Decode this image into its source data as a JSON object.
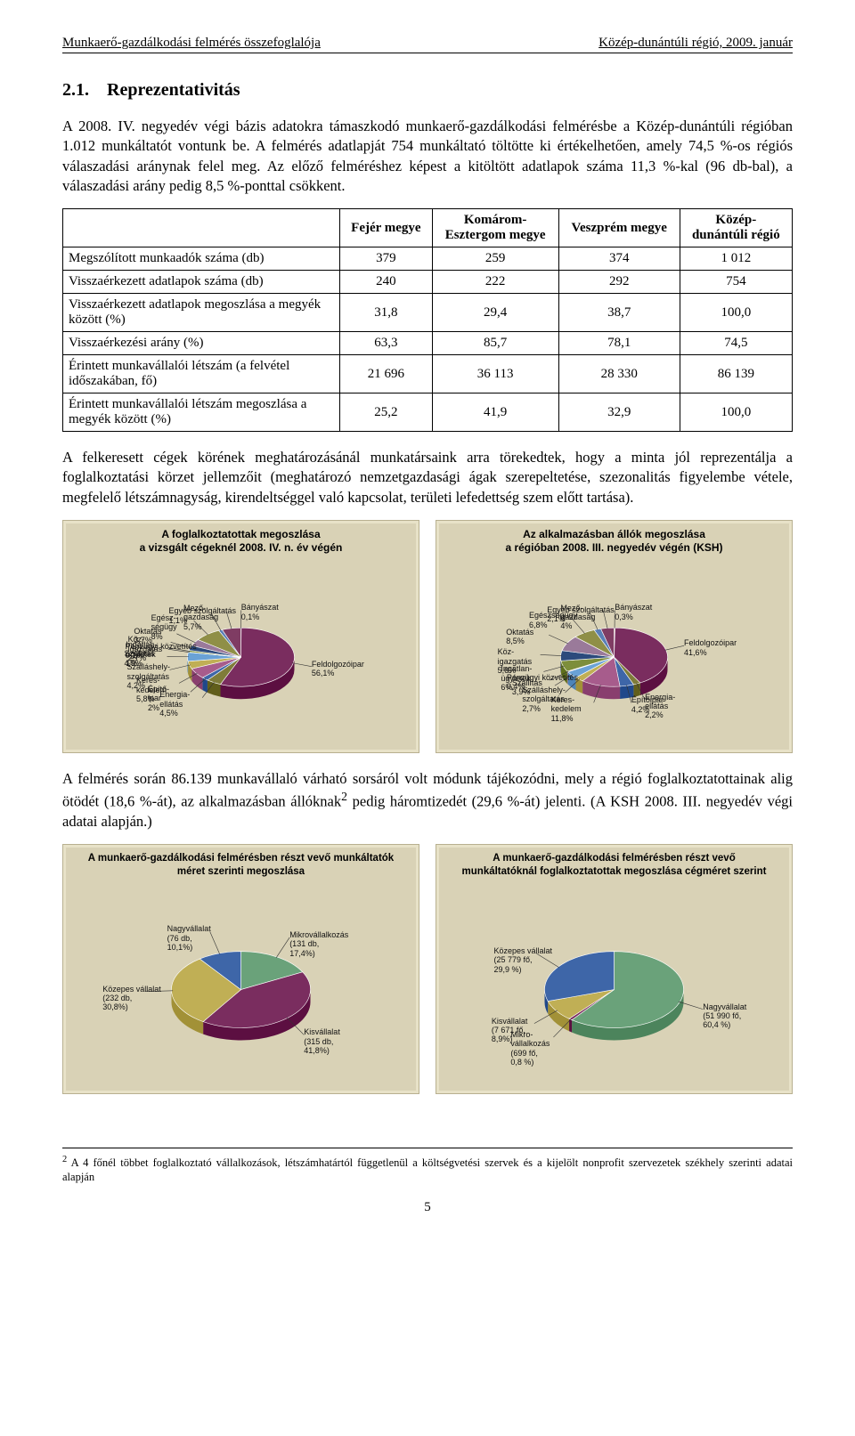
{
  "header": {
    "left": "Munkaerő-gazdálkodási felmérés összefoglalója",
    "right": "Közép-dunántúli régió, 2009. január"
  },
  "section_number": "2.1.",
  "section_title": "Reprezentativitás",
  "para1": "A 2008. IV. negyedév végi bázis adatokra támaszkodó munkaerő-gazdálkodási felmérésbe a Közép-dunántúli régióban 1.012 munkáltatót vontunk be. A felmérés adatlapját 754 munkáltató töltötte ki értékelhetően, amely 74,5 %-os régiós válaszadási aránynak felel meg. Az előző felméréshez képest a kitöltött adatlapok száma 11,3 %-kal (96 db-bal), a válaszadási arány pedig 8,5 %-ponttal csökkent.",
  "table1": {
    "columns": [
      "",
      "Fejér megye",
      "Komárom-Esztergom megye",
      "Veszprém megye",
      "Közép-dunántúli régió"
    ],
    "rows": [
      [
        "Megszólított munkaadók száma (db)",
        "379",
        "259",
        "374",
        "1 012"
      ],
      [
        "Visszaérkezett adatlapok száma (db)",
        "240",
        "222",
        "292",
        "754"
      ],
      [
        "Visszaérkezett adatlapok megoszlása a megyék között (%)",
        "31,8",
        "29,4",
        "38,7",
        "100,0"
      ],
      [
        "Visszaérkezési arány (%)",
        "63,3",
        "85,7",
        "78,1",
        "74,5"
      ],
      [
        "Érintett munkavállalói létszám (a felvétel időszakában, fő)",
        "21 696",
        "36 113",
        "28 330",
        "86 139"
      ],
      [
        "Érintett munkavállalói létszám megoszlása a megyék között (%)",
        "25,2",
        "41,9",
        "32,9",
        "100,0"
      ]
    ]
  },
  "para2": "A felkeresett cégek körének meghatározásánál munkatársaink arra törekedtek, hogy a minta jól reprezentálja a foglalkoztatási körzet jellemzőit (meghatározó nemzetgazdasági ágak szerepeltetése, szezonalitás figyelembe vétele, megfelelő létszámnagyság, kirendeltséggel való kapcsolat, területi lefedettség szem előtt tartása).",
  "charts_top": {
    "panel_bg": "#d9d2b6",
    "panel_border": "#b8b090",
    "left": {
      "title": "A foglalkoztatottak megoszlása\na vizsgált cégeknél 2008. IV. n. év végén",
      "type": "pie",
      "slices": [
        {
          "label": "Bányászat",
          "value": 0.1,
          "color": "#c4956b"
        },
        {
          "label": "Feldolgozóipar",
          "value": 56.1,
          "color": "#7a2d5f"
        },
        {
          "label": "Energia-ellátás",
          "value": 4.5,
          "color": "#7f7c39"
        },
        {
          "label": "Építő-ipar",
          "value": 2.0,
          "color": "#3e66a8"
        },
        {
          "label": "Keres-kedelem",
          "value": 5.8,
          "color": "#a75c8c"
        },
        {
          "label": "Szálláshely-szolgáltatás",
          "value": 4.2,
          "color": "#c0af55"
        },
        {
          "label": "Szállítás",
          "value": 4.9,
          "color": "#6aa2d6"
        },
        {
          "label": "Pénzügyi közvetítés",
          "value": 0.1,
          "color": "#c48f9f"
        },
        {
          "label": "Ingatlan-ügyletek",
          "value": 1.0,
          "color": "#7d8e3b"
        },
        {
          "label": "Köz-igazgatás",
          "value": 2.7,
          "color": "#2c4a7c"
        },
        {
          "label": "Oktatás",
          "value": 3.7,
          "color": "#9a7a9a"
        },
        {
          "label": "Egész-ségügy",
          "value": 8.0,
          "color": "#8f8f47"
        },
        {
          "label": "Egyéb szolgáltatás",
          "value": 1.1,
          "color": "#5a7fb7"
        },
        {
          "label": "Mező-gazdaság",
          "value": 5.7,
          "color": "#7f3c63"
        }
      ]
    },
    "right": {
      "title": "Az alkalmazásban állók megoszlása\na régióban 2008. III. negyedév végén (KSH)",
      "type": "pie",
      "slices": [
        {
          "label": "Bányászat",
          "value": 0.3,
          "color": "#c4956b"
        },
        {
          "label": "Feldolgozóipar",
          "value": 41.6,
          "color": "#7a2d5f"
        },
        {
          "label": "Energia-ellátás",
          "value": 2.2,
          "color": "#7f7c39"
        },
        {
          "label": "Építőipar",
          "value": 4.2,
          "color": "#3e66a8"
        },
        {
          "label": "Keres-kedelem",
          "value": 11.8,
          "color": "#a75c8c"
        },
        {
          "label": "Szálláshely-szolgáltatás",
          "value": 2.7,
          "color": "#c0af55"
        },
        {
          "label": "Szállítás",
          "value": 3.9,
          "color": "#6aa2d6"
        },
        {
          "label": "Pénzügyi közvetítés",
          "value": 0.4,
          "color": "#c48f9f"
        },
        {
          "label": "Ingatlan-ügyletek",
          "value": 6.0,
          "color": "#7d8e3b"
        },
        {
          "label": "Köz-igazgatás",
          "value": 5.6,
          "color": "#2c4a7c"
        },
        {
          "label": "Oktatás",
          "value": 8.5,
          "color": "#9a7a9a"
        },
        {
          "label": "Egészségügy",
          "value": 6.8,
          "color": "#8f8f47"
        },
        {
          "label": "Egyéb szolgáltatás",
          "value": 2.1,
          "color": "#5a7fb7"
        },
        {
          "label": "Mező-gazdaság",
          "value": 4.0,
          "color": "#7f3c63"
        }
      ]
    }
  },
  "para3_a": "A felmérés során 86.139 munkavállaló várható sorsáról volt módunk tájékozódni, mely a régió foglalkoztatottainak alig ötödét (18,6 %-át), az alkalmazásban állóknak",
  "para3_sup": "2",
  "para3_b": " pedig háromtizedét (29,6 %-át) jelenti. (A KSH 2008. III. negyedév végi adatai alapján.)",
  "charts_bottom": {
    "left": {
      "title": "A munkaerő-gazdálkodási felmérésben részt vevő munkáltatók\nméret szerinti megoszlása",
      "type": "pie",
      "slices": [
        {
          "label": "Mikrovállalkozás",
          "detail": "(131 db,\n17,4%)",
          "value": 17.4,
          "color": "#6aa27a"
        },
        {
          "label": "Kisvállalat",
          "detail": "(315 db,\n41,8%)",
          "value": 41.8,
          "color": "#7a2d5f"
        },
        {
          "label": "Közepes vállalat",
          "detail": "(232 db,\n30,8%)",
          "value": 30.8,
          "color": "#c0af55"
        },
        {
          "label": "Nagyvállalat",
          "detail": "(76 db,\n10,1%)",
          "value": 10.1,
          "color": "#3e66a8"
        }
      ]
    },
    "right": {
      "title": "A munkaerő-gazdálkodási felmérésben részt vevő\nmunkáltatóknál foglalkoztatottak megoszlása cégméret szerint",
      "type": "pie",
      "slices": [
        {
          "label": "Nagyvállalat",
          "detail": "(51 990 fő,\n60,4 %)",
          "value": 60.4,
          "color": "#6aa27a"
        },
        {
          "label": "Mikro-vállalkozás",
          "detail": "(699 fő,\n0,8 %)",
          "value": 0.8,
          "color": "#7a2d5f"
        },
        {
          "label": "Kisvállalat",
          "detail": "(7 671 fő,\n8,9%)",
          "value": 8.9,
          "color": "#c0af55"
        },
        {
          "label": "Közepes vállalat",
          "detail": "(25 779 fő,\n29,9 %)",
          "value": 29.9,
          "color": "#3e66a8"
        }
      ]
    }
  },
  "footnote": {
    "num": "2",
    "text": " A 4 főnél többet foglalkoztató vállalkozások, létszámhatártól függetlenül a költségvetési szervek és a kijelölt nonprofit szervezetek székhely szerinti adatai alapján"
  },
  "page_number": "5"
}
